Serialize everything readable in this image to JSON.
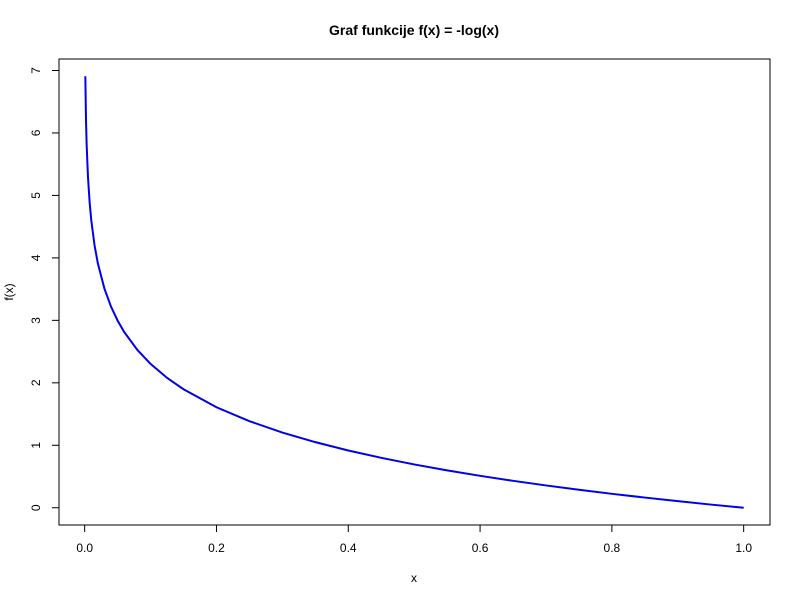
{
  "chart_data": {
    "type": "line",
    "title": "Graf funkcije f(x) = -log(x)",
    "xlabel": "x",
    "ylabel": "f(x)",
    "xlim": [
      0.001,
      1
    ],
    "ylim": [
      0,
      6.907755
    ],
    "grid": false,
    "legend": "none",
    "x_ticks": [
      0.0,
      0.2,
      0.4,
      0.6,
      0.8,
      1.0
    ],
    "x_tick_labels": [
      "0.0",
      "0.2",
      "0.4",
      "0.6",
      "0.8",
      "1.0"
    ],
    "y_ticks": [
      0,
      1,
      2,
      3,
      4,
      5,
      6,
      7
    ],
    "y_tick_labels": [
      "0",
      "1",
      "2",
      "3",
      "4",
      "5",
      "6",
      "7"
    ],
    "series": [
      {
        "color": "#0000ee",
        "x": [
          0.001,
          0.002,
          0.003,
          0.005,
          0.0075,
          0.01,
          0.015,
          0.02,
          0.03,
          0.04,
          0.05,
          0.06,
          0.08,
          0.1,
          0.125,
          0.15,
          0.2,
          0.25,
          0.3,
          0.35,
          0.4,
          0.45,
          0.5,
          0.55,
          0.6,
          0.65,
          0.7,
          0.75,
          0.8,
          0.85,
          0.9,
          0.95,
          1.0
        ],
        "y": [
          6.908,
          6.215,
          5.809,
          5.298,
          4.893,
          4.605,
          4.2,
          3.912,
          3.507,
          3.219,
          2.996,
          2.813,
          2.526,
          2.303,
          2.079,
          1.897,
          1.609,
          1.386,
          1.204,
          1.05,
          0.916,
          0.799,
          0.693,
          0.598,
          0.511,
          0.431,
          0.357,
          0.288,
          0.223,
          0.163,
          0.105,
          0.051,
          0.0
        ]
      }
    ]
  }
}
